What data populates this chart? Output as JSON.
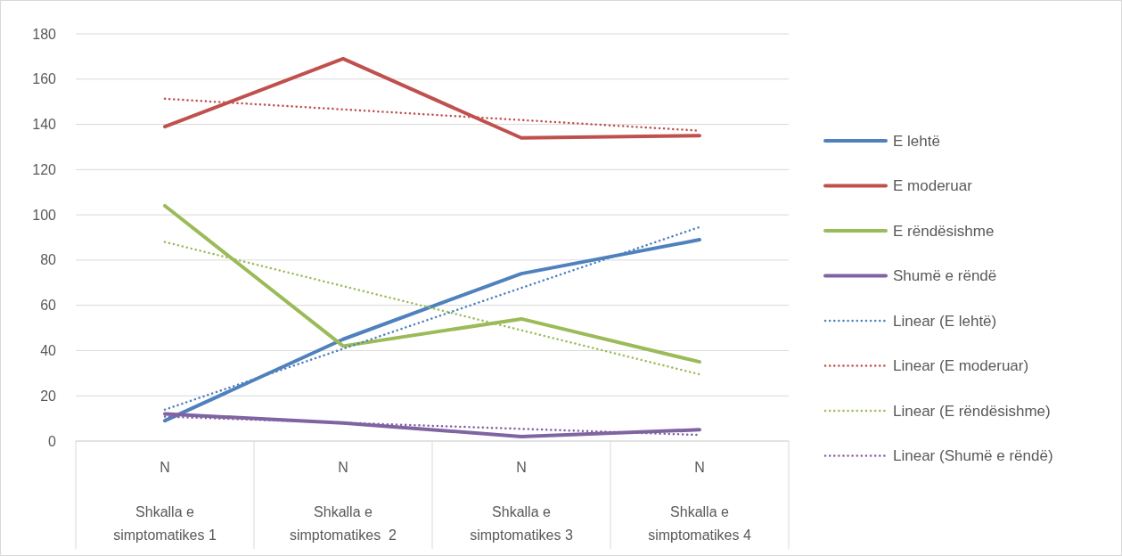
{
  "chart_data": {
    "type": "line",
    "categories": [
      "N\nShkalla e\nsimptomatikes 1",
      "N\nShkalla e\nsimptomatikes  2",
      "N\nShkalla e\nsimptomatikes 3",
      "N\nShkalla e\nsimptomatikes 4"
    ],
    "series": [
      {
        "name": "E lehtë",
        "color": "#4f81bd",
        "values": [
          9,
          45,
          74,
          89
        ],
        "line_style": "solid"
      },
      {
        "name": "E moderuar",
        "color": "#c0504d",
        "values": [
          139,
          169,
          134,
          135
        ],
        "line_style": "solid"
      },
      {
        "name": "E rëndësishme",
        "color": "#9bbb59",
        "values": [
          104,
          42,
          54,
          35
        ],
        "line_style": "solid"
      },
      {
        "name": "Shumë e rëndë",
        "color": "#8064a2",
        "values": [
          12,
          8,
          2,
          5
        ],
        "line_style": "solid"
      },
      {
        "name": "Linear (E lehtë)",
        "color": "#4f81bd",
        "values": [
          13.9,
          40.8,
          67.7,
          94.6
        ],
        "line_style": "dotted"
      },
      {
        "name": "Linear (E moderuar)",
        "color": "#c0504d",
        "values": [
          151.3,
          146.6,
          141.9,
          137.2
        ],
        "line_style": "dotted"
      },
      {
        "name": "Linear (E rëndësishme)",
        "color": "#9bbb59",
        "values": [
          88,
          68.5,
          49,
          29.5
        ],
        "line_style": "dotted"
      },
      {
        "name": "Linear (Shumë e rëndë)",
        "color": "#8064a2",
        "values": [
          10.8,
          8.1,
          5.4,
          2.7
        ],
        "line_style": "dotted"
      }
    ],
    "ylim": [
      0,
      180
    ],
    "yticks": [
      0,
      20,
      40,
      60,
      80,
      100,
      120,
      140,
      160,
      180
    ],
    "grid": "y",
    "legend": "right",
    "marker": "none"
  }
}
